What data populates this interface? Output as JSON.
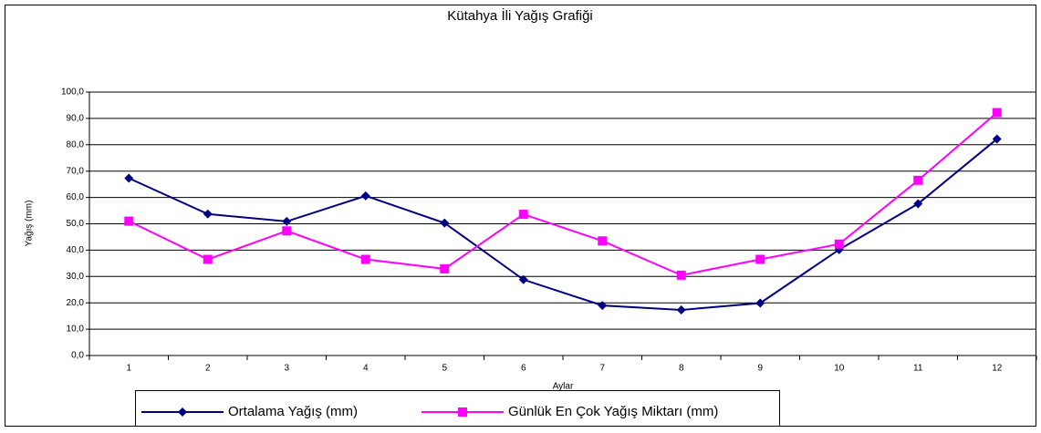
{
  "chart_data": {
    "type": "line",
    "title": "Kütahya İli Yağış Grafiği",
    "x_label": "Aylar",
    "y_label": "Yağış (mm)",
    "categories": [
      "1",
      "2",
      "3",
      "4",
      "5",
      "6",
      "7",
      "8",
      "9",
      "10",
      "11",
      "12"
    ],
    "series": [
      {
        "name": "Ortalama Yağış (mm)",
        "color": "#000080",
        "marker": "diamond",
        "values": [
          67.3,
          53.7,
          50.9,
          60.6,
          50.3,
          28.8,
          19.0,
          17.3,
          19.9,
          40.2,
          57.6,
          82.2
        ]
      },
      {
        "name": "Günlük En Çok Yağış Miktarı (mm)",
        "color": "#ff00ff",
        "marker": "square",
        "values": [
          51.0,
          36.5,
          47.3,
          36.5,
          32.9,
          53.6,
          43.5,
          30.5,
          36.5,
          42.3,
          66.5,
          92.2
        ]
      }
    ],
    "ylim": [
      0,
      100
    ],
    "yticks": [
      {
        "value": 0,
        "label": "0,0"
      },
      {
        "value": 10,
        "label": "10,0"
      },
      {
        "value": 20,
        "label": "20,0"
      },
      {
        "value": 30,
        "label": "30,0"
      },
      {
        "value": 40,
        "label": "40,0"
      },
      {
        "value": 50,
        "label": "50,0"
      },
      {
        "value": 60,
        "label": "60,0"
      },
      {
        "value": 70,
        "label": "70,0"
      },
      {
        "value": 80,
        "label": "80,0"
      },
      {
        "value": 90,
        "label": "90,0"
      },
      {
        "value": 100,
        "label": "100,0"
      }
    ],
    "grid": true,
    "legend": "bottom"
  }
}
